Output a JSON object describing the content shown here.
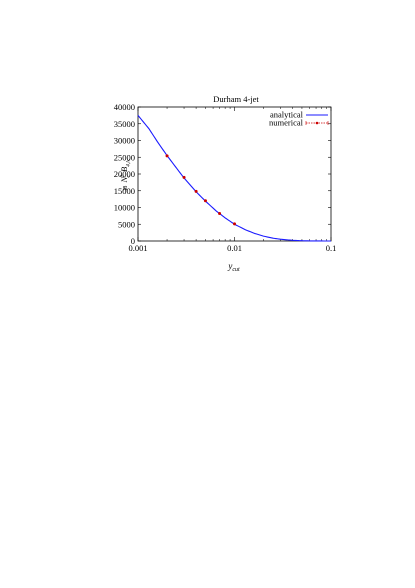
{
  "chart_data": {
    "type": "line",
    "title": "Durham 4-jet",
    "xlabel": "y_cut",
    "ylabel": "(1/8) N_c^2 B_{4,lc}",
    "xscale": "log",
    "xlim": [
      0.001,
      0.1
    ],
    "ylim": [
      0,
      40000
    ],
    "x_ticks": [
      {
        "value": 0.001,
        "label": "0.001"
      },
      {
        "value": 0.01,
        "label": "0.01"
      },
      {
        "value": 0.1,
        "label": "0.1"
      }
    ],
    "y_ticks": [
      {
        "value": 0,
        "label": "0"
      },
      {
        "value": 5000,
        "label": "5000"
      },
      {
        "value": 10000,
        "label": "10000"
      },
      {
        "value": 15000,
        "label": "15000"
      },
      {
        "value": 20000,
        "label": "20000"
      },
      {
        "value": 25000,
        "label": "25000"
      },
      {
        "value": 30000,
        "label": "30000"
      },
      {
        "value": 35000,
        "label": "35000"
      },
      {
        "value": 40000,
        "label": "40000"
      }
    ],
    "legend_position": "top-right",
    "series": [
      {
        "name": "analytical",
        "color": "#1a1aff",
        "style": "line",
        "x": [
          0.001,
          0.0013,
          0.0016,
          0.002,
          0.0025,
          0.003,
          0.004,
          0.005,
          0.0065,
          0.008,
          0.01,
          0.013,
          0.016,
          0.02,
          0.025,
          0.03,
          0.04,
          0.05,
          0.065,
          0.08,
          0.1
        ],
        "y": [
          37500,
          33500,
          29500,
          25500,
          21800,
          18800,
          14700,
          11900,
          8900,
          6900,
          5000,
          3350,
          2300,
          1450,
          850,
          520,
          200,
          80,
          20,
          5,
          0
        ]
      },
      {
        "name": "numerical",
        "color": "#cc0000",
        "style": "points-with-errorbars",
        "x": [
          0.002,
          0.003,
          0.004,
          0.005,
          0.007,
          0.01
        ],
        "y": [
          25400,
          19000,
          14800,
          12000,
          8200,
          5100
        ],
        "err": [
          350,
          300,
          250,
          220,
          200,
          180
        ]
      }
    ]
  }
}
